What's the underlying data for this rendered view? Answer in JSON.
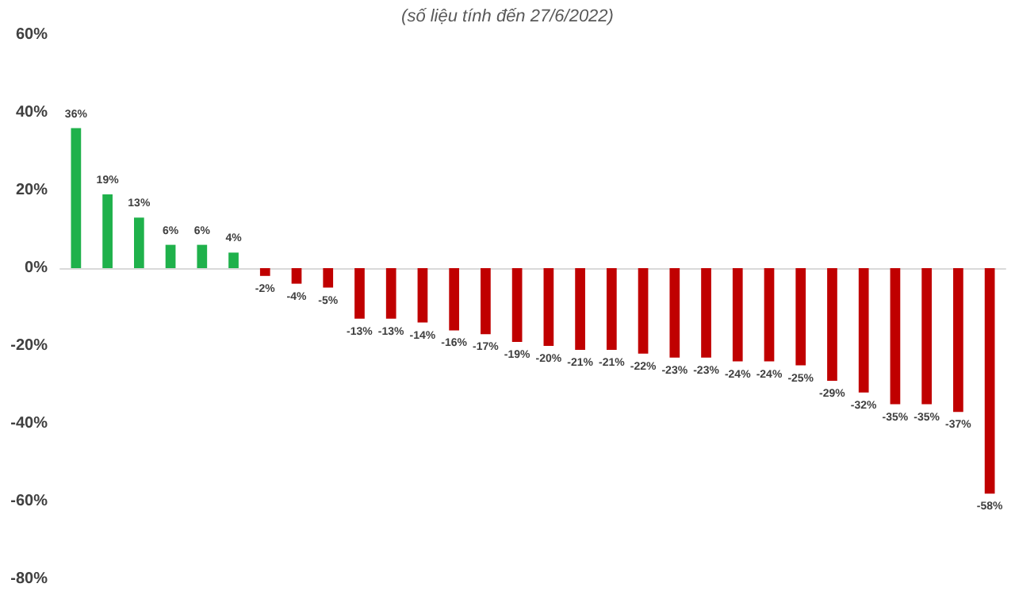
{
  "chart_data": {
    "type": "bar",
    "subtitle": "(số liệu tính đến 27/6/2022)",
    "categories": [
      null,
      null,
      null,
      null,
      null,
      null,
      null,
      null,
      null,
      null,
      null,
      null,
      null,
      null,
      null,
      null,
      null,
      null,
      null,
      null,
      null,
      null,
      null,
      null,
      null,
      null,
      null,
      null,
      null,
      null
    ],
    "values": [
      36,
      19,
      13,
      6,
      6,
      4,
      -2,
      -4,
      -5,
      -13,
      -13,
      -14,
      -16,
      -17,
      -19,
      -20,
      -21,
      -21,
      -22,
      -23,
      -23,
      -24,
      -24,
      -25,
      -29,
      -32,
      -35,
      -35,
      -37,
      -58
    ],
    "value_labels": [
      "36%",
      "19%",
      "13%",
      "6%",
      "6%",
      "4%",
      "-2%",
      "-4%",
      "-5%",
      "-13%",
      "-13%",
      "-14%",
      "-16%",
      "-17%",
      "-19%",
      "-20%",
      "-21%",
      "-21%",
      "-22%",
      "-23%",
      "-23%",
      "-24%",
      "-24%",
      "-25%",
      "-29%",
      "-32%",
      "-35%",
      "-35%",
      "-37%",
      "-58%"
    ],
    "colors": [
      "#1fb14b",
      "#1fb14b",
      "#1fb14b",
      "#1fb14b",
      "#1fb14b",
      "#1fb14b",
      "#c00000",
      "#c00000",
      "#c00000",
      "#c00000",
      "#c00000",
      "#c00000",
      "#c00000",
      "#c00000",
      "#c00000",
      "#c00000",
      "#c00000",
      "#c00000",
      "#c00000",
      "#c00000",
      "#c00000",
      "#c00000",
      "#c00000",
      "#c00000",
      "#c00000",
      "#c00000",
      "#c00000",
      "#c00000",
      "#c00000",
      "#c00000"
    ],
    "ylim": [
      -80,
      60
    ],
    "yticks": [
      {
        "value": -80,
        "label": "-80%"
      },
      {
        "value": -60,
        "label": "-60%"
      },
      {
        "value": -40,
        "label": "-40%"
      },
      {
        "value": -20,
        "label": "-20%"
      },
      {
        "value": 0,
        "label": "0%"
      },
      {
        "value": 20,
        "label": "20%"
      },
      {
        "value": 40,
        "label": "40%"
      },
      {
        "value": 60,
        "label": "60%"
      }
    ]
  }
}
